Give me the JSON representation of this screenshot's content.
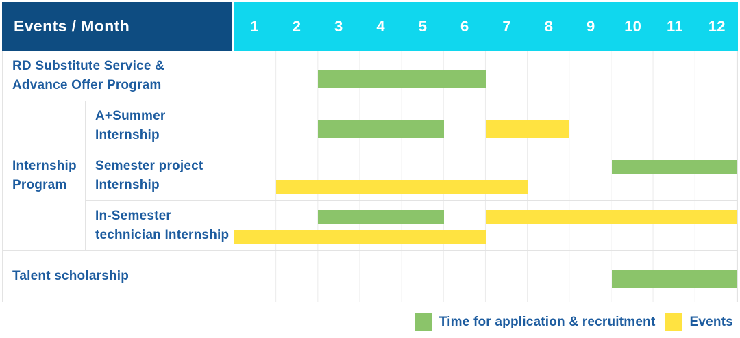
{
  "header": {
    "title": "Events / Month"
  },
  "group": {
    "label": "Internship\nProgram"
  },
  "colors": {
    "green": "#8BC46A",
    "yellow": "#FFE341",
    "header_dark_blue": "#0E4C81",
    "header_cyan": "#10D7EE",
    "text_blue": "#1D5C9F"
  },
  "legend": [
    {
      "label": "Time for application & recruitment",
      "color": "green"
    },
    {
      "label": "Events",
      "color": "yellow"
    }
  ],
  "chart_data": {
    "type": "gantt",
    "x_axis": "month",
    "x_range": [
      1,
      12
    ],
    "months": [
      "1",
      "2",
      "3",
      "4",
      "5",
      "6",
      "7",
      "8",
      "9",
      "10",
      "11",
      "12"
    ],
    "legend": {
      "green": "Time for application & recruitment",
      "yellow": "Events"
    },
    "rows": [
      {
        "id": "rd-substitute",
        "group": null,
        "label": "RD Substitute Service &\nAdvance Offer Program",
        "bars": [
          {
            "color": "green",
            "lane": "single",
            "start_month": 3,
            "end_month": 6
          }
        ]
      },
      {
        "id": "a-summer-internship",
        "group": "Internship Program",
        "label": "A+Summer\nInternship",
        "bars": [
          {
            "color": "green",
            "lane": "single",
            "start_month": 3,
            "end_month": 5
          },
          {
            "color": "yellow",
            "lane": "single",
            "start_month": 7,
            "end_month": 8
          }
        ]
      },
      {
        "id": "semester-project-internship",
        "group": "Internship Program",
        "label": "Semester project\nInternship",
        "bars": [
          {
            "color": "green",
            "lane": "top",
            "start_month": 10,
            "end_month": 12
          },
          {
            "color": "yellow",
            "lane": "bottom",
            "start_month": 2,
            "end_month": 7
          }
        ]
      },
      {
        "id": "in-semester-technician-internship",
        "group": "Internship Program",
        "label": "In-Semester\ntechnician Internship",
        "bars": [
          {
            "color": "green",
            "lane": "top",
            "start_month": 3,
            "end_month": 5
          },
          {
            "color": "yellow",
            "lane": "top",
            "start_month": 7,
            "end_month": 12
          },
          {
            "color": "yellow",
            "lane": "bottom",
            "start_month": 1,
            "end_month": 6
          }
        ]
      },
      {
        "id": "talent-scholarship",
        "group": null,
        "label": "Talent scholarship",
        "bars": [
          {
            "color": "green",
            "lane": "single",
            "start_month": 10,
            "end_month": 12
          }
        ]
      }
    ]
  }
}
